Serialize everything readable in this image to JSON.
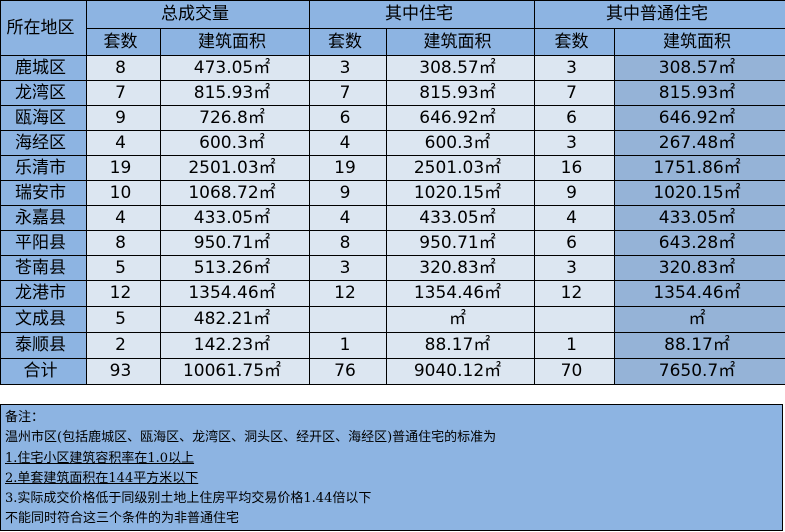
{
  "header": {
    "district": "所在地区",
    "groups": [
      "总成交量",
      "其中住宅",
      "其中普通住宅"
    ],
    "sub": [
      "套数",
      "建筑面积",
      "套数",
      "建筑面积",
      "套数",
      "建筑面积"
    ]
  },
  "rows": [
    [
      "鹿城区",
      "8",
      "473.05㎡",
      "3",
      "308.57㎡",
      "3",
      "308.57㎡"
    ],
    [
      "龙湾区",
      "7",
      "815.93㎡",
      "7",
      "815.93㎡",
      "7",
      "815.93㎡"
    ],
    [
      "瓯海区",
      "9",
      "726.8㎡",
      "6",
      "646.92㎡",
      "6",
      "646.92㎡"
    ],
    [
      "海经区",
      "4",
      "600.3㎡",
      "4",
      "600.3㎡",
      "3",
      "267.48㎡"
    ],
    [
      "乐清市",
      "19",
      "2501.03㎡",
      "19",
      "2501.03㎡",
      "16",
      "1751.86㎡"
    ],
    [
      "瑞安市",
      "10",
      "1068.72㎡",
      "9",
      "1020.15㎡",
      "9",
      "1020.15㎡"
    ],
    [
      "永嘉县",
      "4",
      "433.05㎡",
      "4",
      "433.05㎡",
      "4",
      "433.05㎡"
    ],
    [
      "平阳县",
      "8",
      "950.71㎡",
      "8",
      "950.71㎡",
      "6",
      "643.28㎡"
    ],
    [
      "苍南县",
      "5",
      "513.26㎡",
      "3",
      "320.83㎡",
      "3",
      "320.83㎡"
    ],
    [
      "龙港市",
      "12",
      "1354.46㎡",
      "12",
      "1354.46㎡",
      "12",
      "1354.46㎡"
    ],
    [
      "文成县",
      "5",
      "482.21㎡",
      "",
      "㎡",
      "",
      "㎡"
    ],
    [
      "泰顺县",
      "2",
      "142.23㎡",
      "1",
      "88.17㎡",
      "1",
      "88.17㎡"
    ],
    [
      "合计",
      "93",
      "10061.75㎡",
      "76",
      "9040.12㎡",
      "70",
      "7650.7㎡"
    ]
  ],
  "notes": {
    "title": "备注：",
    "intro": "温州市区(包括鹿城区、瓯海区、龙湾区、洞头区、经开区、海经区)普通住宅的标准为",
    "items": [
      "1.住宅小区建筑容积率在1.0以上",
      "2.单套建筑面积在144平方米以下",
      "3.实际成交价格低于同级别土地上住房平均交易价格1.44倍以下"
    ],
    "footer": "不能同时符合这三个条件的为非普通住宅"
  },
  "colors": {
    "district_column": "#8db4e2",
    "data_cells": "#dce6f1",
    "ordinary_area_column": "#95b3d7",
    "notes_background": "#8db4e2"
  }
}
